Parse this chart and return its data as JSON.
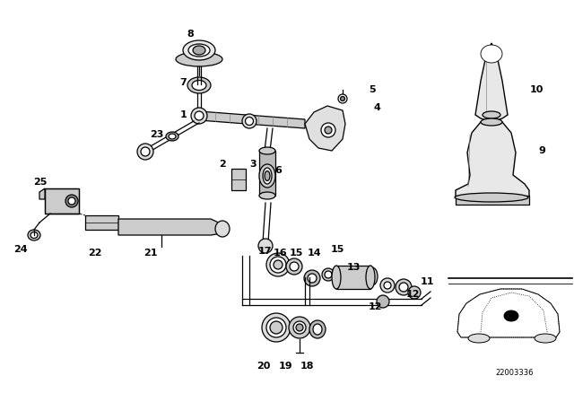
{
  "bg_color": "#ffffff",
  "line_color": "#000000",
  "diagram_code": "22003336",
  "figsize": [
    6.4,
    4.48
  ],
  "dpi": 100
}
